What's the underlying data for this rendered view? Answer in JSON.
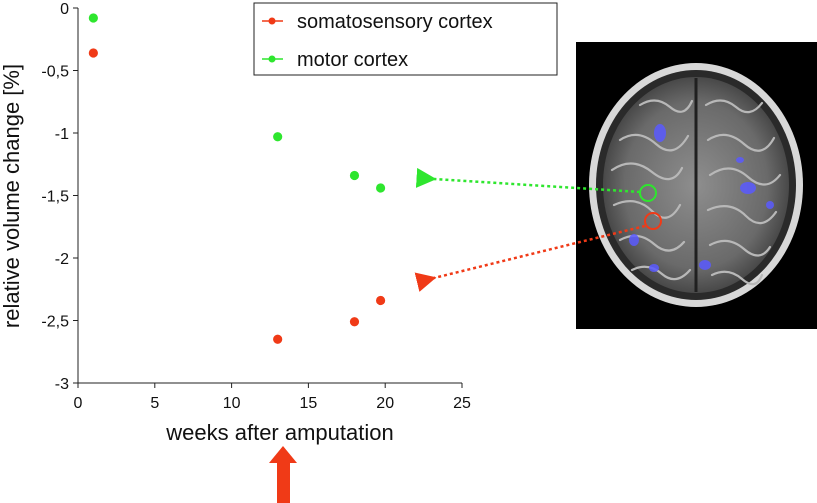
{
  "chart_data": {
    "type": "scatter",
    "xlabel": "weeks after amputation",
    "ylabel": "relative volume change [%]",
    "xlim": [
      0,
      25
    ],
    "ylim": [
      -3,
      0
    ],
    "x_ticks": [
      0,
      5,
      10,
      15,
      20,
      25
    ],
    "y_ticks": [
      {
        "value": 0,
        "label": "0"
      },
      {
        "value": -0.5,
        "label": "-0,5"
      },
      {
        "value": -1,
        "label": "-1"
      },
      {
        "value": -1.5,
        "label": "-1,5"
      },
      {
        "value": -2,
        "label": "-2"
      },
      {
        "value": -2.5,
        "label": "-2,5"
      },
      {
        "value": -3,
        "label": "-3"
      }
    ],
    "grid": false,
    "legend_position": "top-right",
    "series": [
      {
        "name": "somatosensory cortex",
        "color": "#f03a17",
        "points": [
          {
            "x": 1,
            "y": -0.36
          },
          {
            "x": 13,
            "y": -2.65
          },
          {
            "x": 18,
            "y": -2.51
          },
          {
            "x": 19.7,
            "y": -2.34
          }
        ]
      },
      {
        "name": "motor cortex",
        "color": "#2ee62e",
        "points": [
          {
            "x": 1,
            "y": -0.08
          },
          {
            "x": 13,
            "y": -1.03
          },
          {
            "x": 18,
            "y": -1.34
          },
          {
            "x": 19.7,
            "y": -1.44
          }
        ]
      }
    ]
  },
  "annotations": {
    "brain_image": "axial brain MRI scan with blue activation overlay",
    "arrow_color": "#f03a17"
  }
}
